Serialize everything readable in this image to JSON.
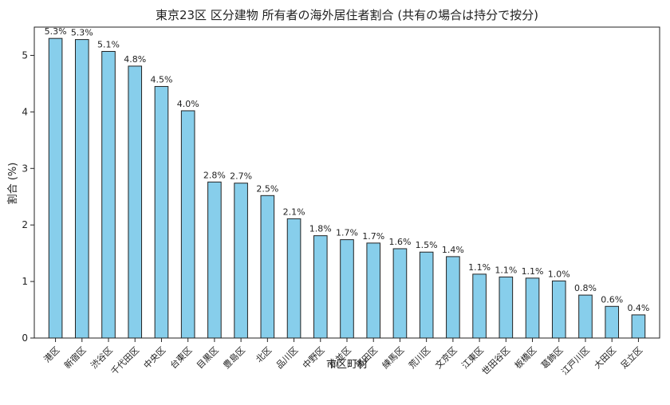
{
  "chart_data": {
    "type": "bar",
    "title": "東京23区 区分建物 所有者の海外居住者割合 (共有の場合は持分で按分)",
    "xlabel": "市区町村",
    "ylabel": "割合 (%)",
    "ylim": [
      0,
      5.5
    ],
    "yticks": [
      0,
      1,
      2,
      3,
      4,
      5
    ],
    "grid": false,
    "bar_color": "#87CEEB",
    "edge_color": "#222222",
    "categories": [
      "港区",
      "新宿区",
      "渋谷区",
      "千代田区",
      "中央区",
      "台東区",
      "目黒区",
      "豊島区",
      "北区",
      "品川区",
      "中野区",
      "杉並区",
      "墨田区",
      "練馬区",
      "荒川区",
      "文京区",
      "江東区",
      "世田谷区",
      "板橋区",
      "葛飾区",
      "江戸川区",
      "大田区",
      "足立区"
    ],
    "values": [
      5.3,
      5.28,
      5.07,
      4.81,
      4.45,
      4.02,
      2.76,
      2.74,
      2.52,
      2.11,
      1.81,
      1.74,
      1.68,
      1.58,
      1.52,
      1.44,
      1.13,
      1.08,
      1.06,
      1.01,
      0.76,
      0.56,
      0.41
    ],
    "labels": [
      "5.3%",
      "5.3%",
      "5.1%",
      "4.8%",
      "4.5%",
      "4.0%",
      "2.8%",
      "2.7%",
      "2.5%",
      "2.1%",
      "1.8%",
      "1.7%",
      "1.7%",
      "1.6%",
      "1.5%",
      "1.4%",
      "1.1%",
      "1.1%",
      "1.1%",
      "1.0%",
      "0.8%",
      "0.6%",
      "0.4%"
    ]
  }
}
